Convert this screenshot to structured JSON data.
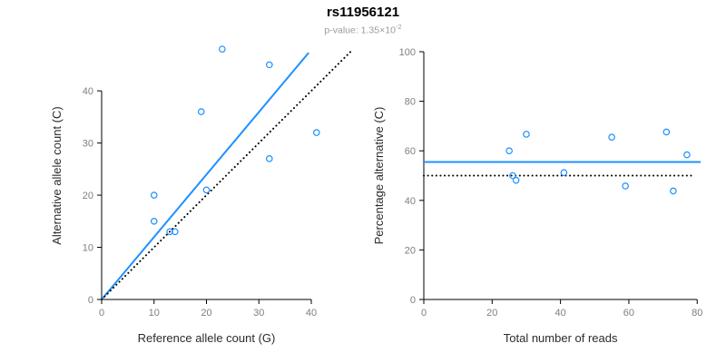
{
  "title": "rs11956121",
  "subtitle": {
    "base": "p-value: 1.35×10",
    "exponent": "-2"
  },
  "colors": {
    "accent": "#1E90FF",
    "identity_line": "#000000",
    "tick_label": "#7f7f7f",
    "axis_label": "#2b2b2b",
    "subtitle_text": "#9b9b9b"
  },
  "chart_data": [
    {
      "type": "scatter",
      "panel": "left",
      "xlabel": "Reference allele count (G)",
      "ylabel": "Alternative allele count (C)",
      "xlim": [
        0,
        49
      ],
      "ylim": [
        0,
        47.5
      ],
      "xticks": [
        0,
        10,
        20,
        30,
        40
      ],
      "yticks": [
        0,
        10,
        20,
        30,
        40
      ],
      "grid": false,
      "legend": "none",
      "points": [
        [
          10,
          15
        ],
        [
          10,
          20
        ],
        [
          13,
          13
        ],
        [
          14,
          13
        ],
        [
          19,
          36
        ],
        [
          20,
          21
        ],
        [
          23,
          48
        ],
        [
          32,
          27
        ],
        [
          32,
          45
        ],
        [
          41,
          32
        ]
      ],
      "lines": [
        {
          "name": "regression-line",
          "style": "solid",
          "color": "#1E90FF",
          "x": [
            0,
            39.5
          ],
          "y": [
            0,
            47.3
          ]
        },
        {
          "name": "identity-line",
          "style": "dotted",
          "color": "#000000",
          "x": [
            0,
            47.5
          ],
          "y": [
            0,
            47.5
          ]
        }
      ]
    },
    {
      "type": "scatter",
      "panel": "right",
      "xlabel": "Total number of reads",
      "ylabel": "Percentage alternative (C)",
      "xlim": [
        0,
        81
      ],
      "ylim": [
        0,
        100
      ],
      "xticks": [
        0,
        20,
        40,
        60,
        80
      ],
      "yticks": [
        0,
        20,
        40,
        60,
        80,
        100
      ],
      "grid": false,
      "legend": "none",
      "points": [
        [
          25,
          60
        ],
        [
          26,
          50
        ],
        [
          27,
          48.1
        ],
        [
          30,
          66.7
        ],
        [
          41,
          51.2
        ],
        [
          55,
          65.5
        ],
        [
          59,
          45.8
        ],
        [
          71,
          67.6
        ],
        [
          73,
          43.8
        ],
        [
          77,
          58.4
        ]
      ],
      "lines": [
        {
          "name": "mean-percentage-line",
          "style": "solid",
          "color": "#1E90FF",
          "x": [
            0,
            81
          ],
          "y": [
            55.5,
            55.5
          ]
        },
        {
          "name": "expected-percentage-line",
          "style": "dotted",
          "color": "#000000",
          "x": [
            0,
            79
          ],
          "y": [
            50,
            50
          ]
        }
      ]
    }
  ]
}
